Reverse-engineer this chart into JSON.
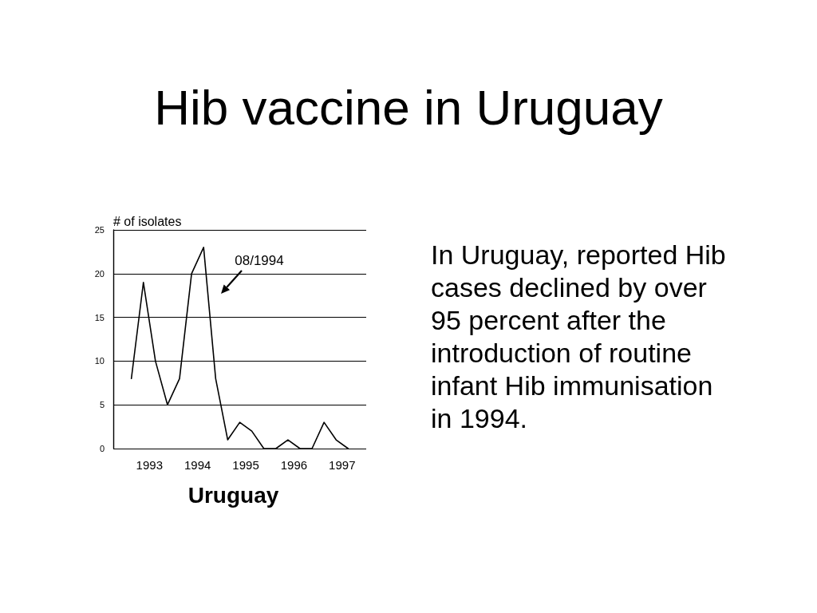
{
  "chart_data": {
    "type": "line",
    "title": "Hib vaccine in Uruguay",
    "xlabel": "Uruguay",
    "ylabel": "# of isolates",
    "x": [
      1993.125,
      1993.375,
      1993.625,
      1993.875,
      1994.125,
      1994.375,
      1994.625,
      1994.875,
      1995.125,
      1995.375,
      1995.625,
      1995.875,
      1996.125,
      1996.375,
      1996.625,
      1996.875,
      1997.125,
      1997.375,
      1997.625
    ],
    "values": [
      8,
      19,
      10,
      5,
      8,
      20,
      23,
      8,
      1,
      3,
      2,
      0,
      0,
      1,
      0,
      0,
      3,
      1,
      0
    ],
    "color": "#000000",
    "xlim": [
      1992.75,
      1998
    ],
    "xticks": [
      {
        "value": 1993.5,
        "label": "1993"
      },
      {
        "value": 1994.5,
        "label": "1994"
      },
      {
        "value": 1995.5,
        "label": "1995"
      },
      {
        "value": 1996.5,
        "label": "1996"
      },
      {
        "value": 1997.5,
        "label": "1997"
      }
    ],
    "ylim": [
      0,
      25
    ],
    "yticks": [
      0,
      5,
      10,
      15,
      20,
      25
    ],
    "grid": "y",
    "marker": "none",
    "line_style": "solid",
    "annotations": [
      "08/1994",
      "In Uruguay, reported Hib cases declined by over 95 percent after the introduction of routine infant Hib immunisation in 1994."
    ]
  }
}
